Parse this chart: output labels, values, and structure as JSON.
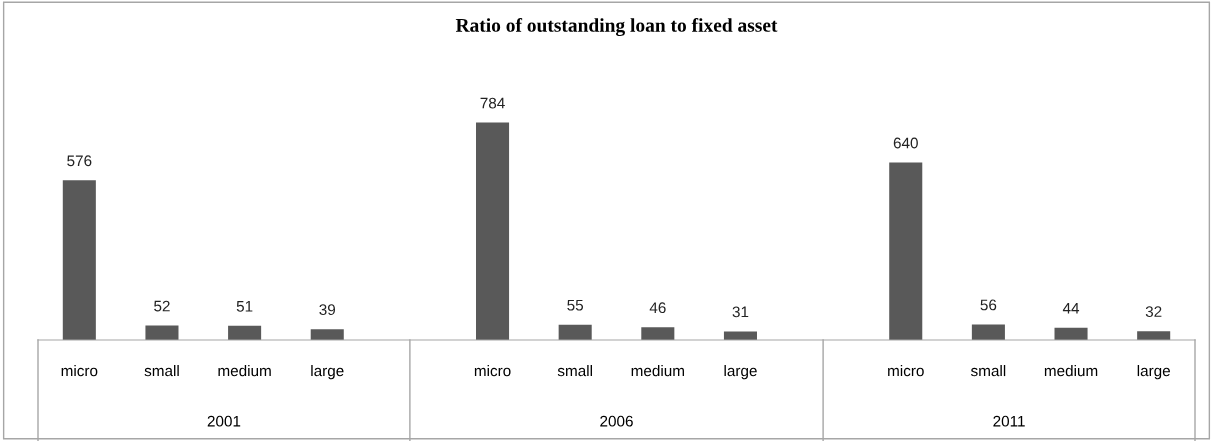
{
  "chart_data": {
    "type": "bar",
    "title": "Ratio of outstanding loan to fixed asset",
    "categories": [
      "micro",
      "small",
      "medium",
      "large",
      null,
      "micro",
      "small",
      "medium",
      "large",
      null,
      "micro",
      "small",
      "medium",
      "large"
    ],
    "values": [
      576,
      52,
      51,
      39,
      null,
      784,
      55,
      46,
      31,
      null,
      640,
      56,
      44,
      32
    ],
    "color": "#595959",
    "data_labels": true,
    "grid": false,
    "legend": false,
    "annotations": [
      "2001",
      "2006",
      "2011"
    ]
  }
}
